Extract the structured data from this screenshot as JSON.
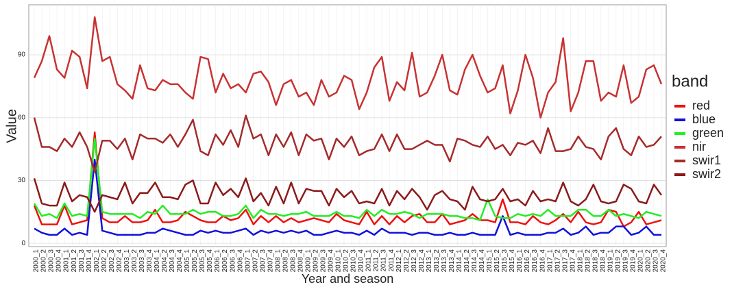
{
  "chart_data": {
    "type": "line",
    "x_label": "Year and season",
    "y_label": "Value",
    "legend_title": "band",
    "legend": "right",
    "grid": true,
    "categories": [
      "2000_1",
      "2000_2",
      "2000_3",
      "2000_4",
      "2001_1",
      "2001_2",
      "2001_3",
      "2001_4",
      "2002_1",
      "2002_2",
      "2002_3",
      "2002_4",
      "2003_1",
      "2003_2",
      "2003_3",
      "2003_4",
      "2004_1",
      "2004_2",
      "2004_3",
      "2004_4",
      "2005_1",
      "2005_2",
      "2005_3",
      "2005_4",
      "2006_1",
      "2006_2",
      "2006_3",
      "2006_4",
      "2007_1",
      "2007_2",
      "2007_3",
      "2007_4",
      "2008_1",
      "2008_2",
      "2008_3",
      "2008_4",
      "2009_1",
      "2009_2",
      "2009_3",
      "2009_4",
      "2010_1",
      "2010_2",
      "2010_3",
      "2010_4",
      "2011_1",
      "2011_2",
      "2011_3",
      "2011_4",
      "2012_1",
      "2012_2",
      "2012_3",
      "2012_4",
      "2013_1",
      "2013_2",
      "2013_3",
      "2013_4",
      "2014_1",
      "2014_2",
      "2014_3",
      "2014_4",
      "2015_1",
      "2015_2",
      "2015_3",
      "2015_4",
      "2016_1",
      "2016_2",
      "2016_3",
      "2016_4",
      "2017_1",
      "2017_2",
      "2017_3",
      "2017_4",
      "2018_1",
      "2018_2",
      "2018_3",
      "2018_4",
      "2019_1",
      "2019_2",
      "2019_3",
      "2019_4",
      "2020_1",
      "2020_2",
      "2020_3",
      "2020_4"
    ],
    "ylim": [
      -1.6,
      113.9
    ],
    "yticks": [
      0,
      30,
      60,
      90
    ],
    "series": [
      {
        "name": "red",
        "color": "#ee1111",
        "values": [
          18,
          9,
          9,
          9,
          18,
          9,
          10,
          11,
          53,
          12,
          10,
          10,
          13,
          10,
          10,
          11,
          16,
          10,
          10,
          11,
          15,
          13,
          11,
          10,
          10,
          13,
          11,
          12,
          16,
          9,
          13,
          10,
          13,
          10,
          12,
          10,
          11,
          12,
          11,
          10,
          14,
          11,
          10,
          9,
          15,
          9,
          13,
          9,
          13,
          10,
          13,
          14,
          10,
          10,
          14,
          9,
          10,
          11,
          14,
          11,
          11,
          10,
          21,
          10,
          10,
          9,
          13,
          10,
          9,
          11,
          14,
          10,
          15,
          10,
          9,
          10,
          16,
          15,
          8,
          10,
          15,
          9,
          10,
          11
        ]
      },
      {
        "name": "blue",
        "color": "#1111dd",
        "values": [
          7,
          5,
          4,
          4,
          7,
          4,
          5,
          4,
          40,
          6,
          5,
          4,
          4,
          4,
          4,
          5,
          5,
          7,
          6,
          5,
          4,
          4,
          6,
          5,
          6,
          5,
          5,
          6,
          7,
          4,
          6,
          5,
          6,
          5,
          6,
          5,
          6,
          4,
          4,
          5,
          6,
          5,
          5,
          4,
          6,
          4,
          7,
          5,
          5,
          5,
          4,
          5,
          5,
          4,
          4,
          5,
          4,
          4,
          5,
          4,
          4,
          4,
          13,
          4,
          5,
          4,
          4,
          4,
          5,
          5,
          7,
          4,
          5,
          8,
          4,
          5,
          5,
          8,
          8,
          4,
          5,
          8,
          4,
          4
        ]
      },
      {
        "name": "green",
        "color": "#22ee22",
        "values": [
          19,
          13,
          14,
          12,
          19,
          13,
          14,
          13,
          50,
          15,
          14,
          14,
          14,
          14,
          12,
          15,
          14,
          18,
          14,
          14,
          14,
          16,
          14,
          15,
          15,
          13,
          13,
          14,
          18,
          12,
          16,
          14,
          14,
          13,
          14,
          14,
          15,
          13,
          13,
          13,
          15,
          13,
          13,
          12,
          16,
          13,
          16,
          14,
          14,
          15,
          14,
          12,
          14,
          14,
          14,
          13,
          13,
          12,
          12,
          11,
          21,
          13,
          12,
          12,
          14,
          13,
          14,
          13,
          16,
          13,
          13,
          13,
          16,
          16,
          13,
          13,
          16,
          13,
          14,
          13,
          12,
          15,
          14,
          13
        ]
      },
      {
        "name": "nir",
        "color": "#c83232",
        "values": [
          79,
          87,
          99,
          83,
          79,
          92,
          89,
          74,
          108,
          87,
          89,
          76,
          73,
          69,
          85,
          74,
          73,
          78,
          76,
          76,
          72,
          69,
          89,
          88,
          72,
          81,
          74,
          76,
          72,
          81,
          82,
          77,
          66,
          76,
          78,
          70,
          72,
          66,
          78,
          70,
          72,
          80,
          78,
          64,
          72,
          84,
          89,
          68,
          77,
          73,
          91,
          70,
          72,
          80,
          90,
          73,
          71,
          83,
          90,
          80,
          72,
          74,
          85,
          62,
          73,
          90,
          79,
          60,
          72,
          77,
          98,
          63,
          72,
          87,
          87,
          68,
          72,
          70,
          85,
          67,
          70,
          83,
          85,
          76
        ]
      },
      {
        "name": "swir1",
        "color": "#a52a2a",
        "values": [
          60,
          46,
          46,
          44,
          50,
          46,
          53,
          46,
          34,
          49,
          49,
          45,
          50,
          40,
          52,
          50,
          50,
          48,
          52,
          46,
          52,
          59,
          44,
          42,
          52,
          47,
          54,
          46,
          61,
          50,
          52,
          42,
          52,
          46,
          53,
          42,
          52,
          49,
          50,
          40,
          50,
          46,
          51,
          42,
          44,
          45,
          52,
          44,
          52,
          45,
          45,
          47,
          49,
          47,
          47,
          39,
          50,
          49,
          47,
          46,
          51,
          45,
          47,
          42,
          48,
          47,
          49,
          43,
          55,
          44,
          44,
          45,
          51,
          46,
          45,
          40,
          51,
          55,
          45,
          42,
          51,
          46,
          47,
          51
        ]
      },
      {
        "name": "swir2",
        "color": "#8b1a1a",
        "values": [
          31,
          19,
          18,
          18,
          29,
          20,
          23,
          22,
          15,
          23,
          22,
          21,
          29,
          19,
          24,
          24,
          29,
          22,
          22,
          21,
          28,
          30,
          19,
          19,
          29,
          23,
          26,
          22,
          31,
          20,
          24,
          18,
          27,
          19,
          29,
          19,
          26,
          25,
          25,
          18,
          26,
          22,
          25,
          19,
          20,
          19,
          26,
          18,
          25,
          21,
          26,
          22,
          16,
          23,
          25,
          21,
          20,
          16,
          27,
          21,
          20,
          21,
          26,
          20,
          21,
          18,
          25,
          20,
          21,
          20,
          29,
          20,
          18,
          21,
          28,
          20,
          19,
          20,
          28,
          26,
          20,
          19,
          28,
          23
        ]
      }
    ]
  }
}
